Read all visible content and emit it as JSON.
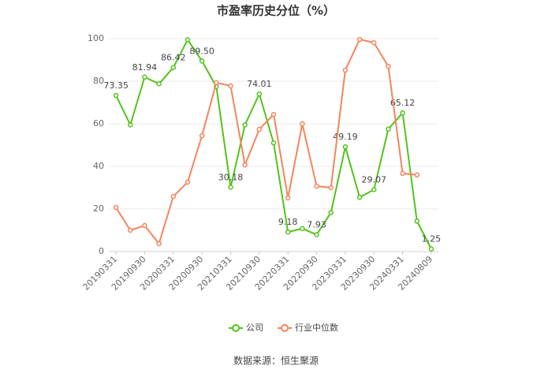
{
  "chart_data": {
    "type": "line",
    "title": "市盈率历史分位（%）",
    "categories": [
      "20190331",
      null,
      "20190930",
      null,
      "20200331",
      null,
      "20200930",
      null,
      "20210331",
      null,
      "20210930",
      null,
      "20220331",
      null,
      "20220930",
      null,
      "20230331",
      null,
      "20230930",
      null,
      "20240331",
      null,
      "20240809"
    ],
    "series": [
      {
        "name": "公司",
        "color": "#52c41a",
        "values": [
          73.35,
          59.5,
          81.94,
          78.8,
          86.42,
          99.5,
          89.5,
          77.5,
          30.18,
          59.5,
          74.01,
          51,
          9.18,
          10.8,
          7.93,
          18.3,
          49.19,
          25.5,
          29.07,
          57.5,
          65.12,
          14.3,
          1.25
        ],
        "value_labels": [
          "73.35",
          null,
          "81.94",
          null,
          "86.42",
          null,
          "89.50",
          null,
          "30.18",
          null,
          "74.01",
          null,
          "9.18",
          null,
          "7.93",
          null,
          "49.19",
          null,
          "29.07",
          null,
          "65.12",
          null,
          "1.25"
        ]
      },
      {
        "name": "行业中位数",
        "color": "#f5855d",
        "values": [
          20.7,
          10,
          12.2,
          3.7,
          25.9,
          32.6,
          54.4,
          79.3,
          77.8,
          40.7,
          57.4,
          64.4,
          25.2,
          60,
          30.7,
          30,
          85.2,
          99.6,
          98.1,
          87,
          36.7,
          36,
          null
        ]
      }
    ],
    "ylim": [
      0,
      100
    ],
    "yticks": [
      0,
      20,
      40,
      60,
      80,
      100
    ],
    "grid": true,
    "legend": "bottom",
    "source": "数据来源：恒生聚源"
  }
}
